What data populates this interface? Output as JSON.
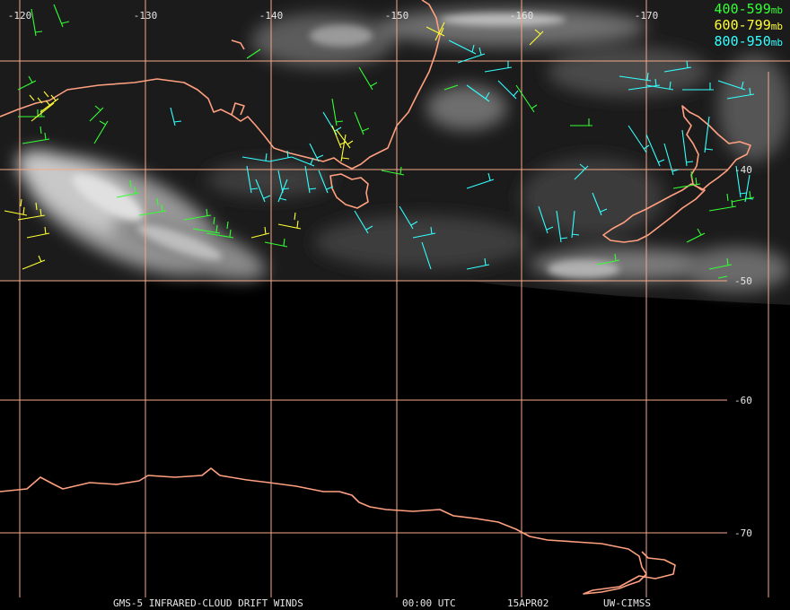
{
  "map": {
    "longitude_labels": [
      "-120",
      "-130",
      "-140",
      "-150",
      "-160",
      "-170"
    ],
    "latitude_labels": [
      "-40",
      "-50",
      "-60",
      "-70"
    ]
  },
  "legend": {
    "items": [
      {
        "range": "400-599",
        "unit": "mb",
        "color": "#33ff33"
      },
      {
        "range": "600-799",
        "unit": "mb",
        "color": "#ffff33"
      },
      {
        "range": "800-950",
        "unit": "mb",
        "color": "#33ffff"
      }
    ]
  },
  "footer": {
    "product": "GMS-5 INFRARED-CLOUD DRIFT WINDS",
    "time": "00:00 UTC",
    "date": "15APR02",
    "source": "UW-CIMSS"
  },
  "colors": {
    "grid": "#f4a98a",
    "coast": "#ffa080",
    "background": "#000000"
  }
}
